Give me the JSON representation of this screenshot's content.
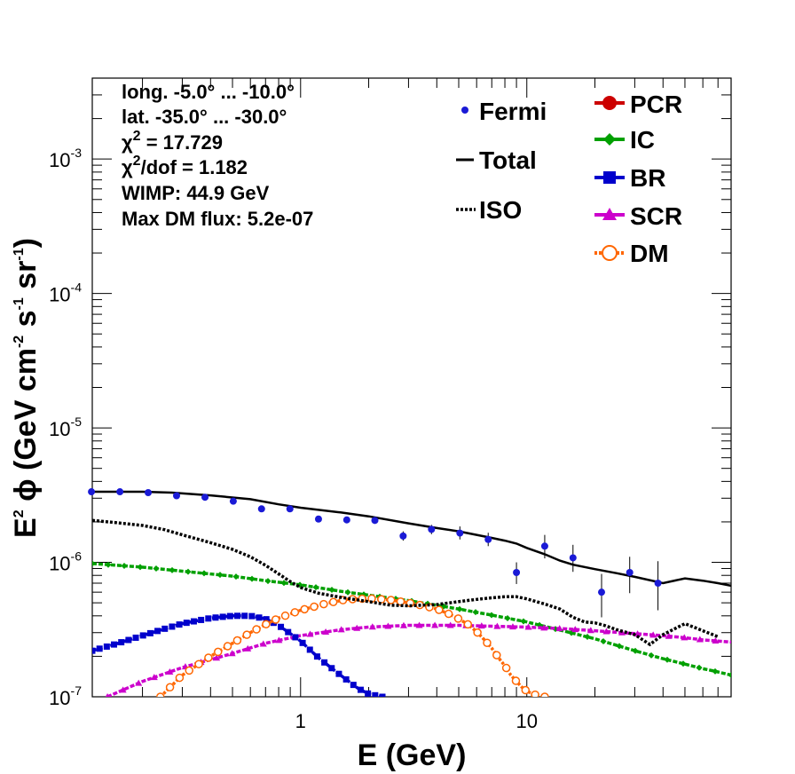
{
  "chart_data": {
    "type": "line",
    "x_scale": "log",
    "y_scale": "log",
    "xlim": [
      0.12,
      80
    ],
    "ylim": [
      1e-07,
      0.004
    ],
    "xlabel": "E (GeV)",
    "ylabel": "E² ϕ (GeV cm⁻² s⁻¹ sr⁻¹)",
    "ylabel_parts": {
      "pre": "E",
      "pre_sup": "2",
      "phi": " ϕ",
      "unit1": " (GeV cm",
      "sup1": "-2",
      "unit2": " s",
      "sup2": "-1",
      "unit3": " sr",
      "sup3": "-1",
      "unit4": ")"
    },
    "x_ticks": [
      {
        "value": 1,
        "label": "1"
      },
      {
        "value": 10,
        "label": "10"
      }
    ],
    "y_ticks": [
      {
        "value": 1e-07,
        "base": "10",
        "exp": "-7"
      },
      {
        "value": 1e-06,
        "base": "10",
        "exp": "-6"
      },
      {
        "value": 1e-05,
        "base": "10",
        "exp": "-5"
      },
      {
        "value": 0.0001,
        "base": "10",
        "exp": "-4"
      },
      {
        "value": 0.001,
        "base": "10",
        "exp": "-3"
      }
    ],
    "annotations": {
      "longitude": "long. -5.0° ... -10.0°",
      "latitude": "lat. -35.0° ... -30.0°",
      "chi2_symbol": "χ",
      "chi2_sup": "2",
      "chi2_value": " = 17.729",
      "chi2dof_value": "/dof = 1.182",
      "wimp": "WIMP: 44.9 GeV",
      "max_dm_flux": "Max DM flux: 5.2e-07"
    },
    "fermi": {
      "name": "Fermi",
      "color": "#1a1ad6",
      "points": [
        {
          "x": 0.119,
          "y": 3.35e-06
        },
        {
          "x": 0.159,
          "y": 3.35e-06
        },
        {
          "x": 0.212,
          "y": 3.3e-06
        },
        {
          "x": 0.283,
          "y": 3.13e-06
        },
        {
          "x": 0.378,
          "y": 3.05e-06
        },
        {
          "x": 0.504,
          "y": 2.85e-06
        },
        {
          "x": 0.672,
          "y": 2.5e-06
        },
        {
          "x": 0.897,
          "y": 2.5e-06
        },
        {
          "x": 1.2,
          "y": 2.1e-06
        },
        {
          "x": 1.6,
          "y": 2.07e-06
        },
        {
          "x": 2.13,
          "y": 2.05e-06
        },
        {
          "x": 2.84,
          "y": 1.57e-06,
          "err": [
            1.45e-06,
            1.7e-06
          ]
        },
        {
          "x": 3.79,
          "y": 1.76e-06,
          "err": [
            1.62e-06,
            1.9e-06
          ]
        },
        {
          "x": 5.06,
          "y": 1.65e-06,
          "err": [
            1.48e-06,
            1.85e-06
          ]
        },
        {
          "x": 6.75,
          "y": 1.48e-06,
          "err": [
            1.32e-06,
            1.66e-06
          ]
        },
        {
          "x": 9.0,
          "y": 8.4e-07,
          "err": [
            6.9e-07,
            1e-06
          ]
        },
        {
          "x": 12.0,
          "y": 1.32e-06,
          "err": [
            1.07e-06,
            1.6e-06
          ]
        },
        {
          "x": 16.0,
          "y": 1.08e-06,
          "err": [
            8.5e-07,
            1.35e-06
          ]
        },
        {
          "x": 21.4,
          "y": 6e-07,
          "err": [
            3.9e-07,
            8.2e-07
          ]
        },
        {
          "x": 28.5,
          "y": 8.4e-07,
          "err": [
            5.9e-07,
            1.1e-06
          ]
        },
        {
          "x": 38.0,
          "y": 7e-07,
          "err": [
            4.4e-07,
            1.02e-06
          ]
        }
      ]
    },
    "series": [
      {
        "name": "Total",
        "color": "#000000",
        "style": "solid",
        "marker": "none",
        "x": [
          0.12,
          0.2,
          0.27,
          0.4,
          0.6,
          0.8,
          1.0,
          1.5,
          2.0,
          3.0,
          4.0,
          5.0,
          6.0,
          7.0,
          8.0,
          9.0,
          10.0,
          12.0,
          14.0,
          16.0,
          20.0,
          25.0,
          30.0,
          40.0,
          50.0,
          60.0,
          70.0,
          80.0
        ],
        "y": [
          3.35e-06,
          3.35e-06,
          3.3e-06,
          3.15e-06,
          2.95e-06,
          2.7e-06,
          2.55e-06,
          2.35e-06,
          2.2e-06,
          1.95e-06,
          1.8e-06,
          1.7e-06,
          1.6e-06,
          1.52e-06,
          1.45e-06,
          1.38e-06,
          1.28e-06,
          1.15e-06,
          1.03e-06,
          9.6e-07,
          8.9e-07,
          8.3e-07,
          7.8e-07,
          7e-07,
          7.6e-07,
          7.3e-07,
          7e-07,
          6.7e-07
        ]
      },
      {
        "name": "ISO",
        "color": "#000000",
        "style": "dotted",
        "marker": "none",
        "x": [
          0.12,
          0.15,
          0.2,
          0.25,
          0.3,
          0.4,
          0.5,
          0.6,
          0.7,
          0.8,
          0.9,
          1.0,
          1.2,
          1.5,
          2.0,
          2.5,
          3.0,
          4.0,
          5.0,
          6.0,
          7.0,
          8.0,
          9.0,
          10.0,
          12.0,
          14.0,
          16.0,
          18.0,
          20.0,
          22.0,
          25.0,
          30.0,
          35.0,
          40.0,
          50.0,
          60.0,
          70.0
        ],
        "y": [
          2.05e-06,
          1.98e-06,
          1.88e-06,
          1.75e-06,
          1.6e-06,
          1.4e-06,
          1.25e-06,
          1.1e-06,
          9.5e-07,
          8.2e-07,
          7.2e-07,
          6.5e-07,
          5.9e-07,
          5.5e-07,
          5.1e-07,
          4.8e-07,
          4.75e-07,
          4.85e-07,
          5.1e-07,
          5.3e-07,
          5.45e-07,
          5.55e-07,
          5.55e-07,
          5.35e-07,
          4.9e-07,
          4.5e-07,
          3.9e-07,
          3.6e-07,
          3.55e-07,
          3.4e-07,
          3.15e-07,
          2.9e-07,
          2.45e-07,
          2.9e-07,
          3.5e-07,
          3.1e-07,
          2.8e-07
        ]
      },
      {
        "name": "PCR",
        "color": "#cc0000",
        "style": "solid",
        "marker": "circle",
        "x": [],
        "y": []
      },
      {
        "name": "IC",
        "color": "#00a000",
        "style": "dashed",
        "marker": "diamond",
        "x": [
          0.12,
          0.2,
          0.3,
          0.5,
          0.7,
          1.0,
          1.5,
          2.0,
          3.0,
          5.0,
          7.0,
          10.0,
          15.0,
          20.0,
          30.0,
          40.0,
          50.0,
          60.0,
          70.0,
          80.0
        ],
        "y": [
          9.8e-07,
          9.2e-07,
          8.6e-07,
          7.9e-07,
          7.3e-07,
          6.8e-07,
          6.1e-07,
          5.7e-07,
          5.2e-07,
          4.5e-07,
          4.05e-07,
          3.6e-07,
          3.05e-07,
          2.7e-07,
          2.2e-07,
          1.92e-07,
          1.75e-07,
          1.62e-07,
          1.53e-07,
          1.45e-07
        ]
      },
      {
        "name": "BR",
        "color": "#0000cc",
        "style": "dashed",
        "marker": "square",
        "x": [
          0.12,
          0.15,
          0.2,
          0.25,
          0.3,
          0.4,
          0.5,
          0.6,
          0.7,
          0.8,
          1.0,
          1.2,
          1.5,
          1.8,
          2.0,
          2.3
        ],
        "y": [
          2.2e-07,
          2.45e-07,
          2.85e-07,
          3.2e-07,
          3.5e-07,
          3.85e-07,
          4e-07,
          4e-07,
          3.8e-07,
          3.4e-07,
          2.6e-07,
          1.95e-07,
          1.45e-07,
          1.15e-07,
          1.05e-07,
          1e-07
        ]
      },
      {
        "name": "SCR",
        "color": "#cc00cc",
        "style": "dashed",
        "marker": "triangle",
        "x": [
          0.14,
          0.2,
          0.3,
          0.5,
          0.7,
          1.0,
          1.5,
          2.0,
          3.0,
          5.0,
          7.0,
          10.0,
          15.0,
          20.0,
          30.0,
          40.0,
          50.0,
          60.0,
          70.0,
          80.0
        ],
        "y": [
          1e-07,
          1.3e-07,
          1.65e-07,
          2.1e-07,
          2.5e-07,
          2.85e-07,
          3.15e-07,
          3.3e-07,
          3.4e-07,
          3.4e-07,
          3.35e-07,
          3.3e-07,
          3.2e-07,
          3.1e-07,
          2.95e-07,
          2.85e-07,
          2.75e-07,
          2.65e-07,
          2.6e-07,
          2.55e-07
        ]
      },
      {
        "name": "DM",
        "color": "#ff6600",
        "style": "dotted",
        "marker": "open-circle",
        "x": [
          0.24,
          0.3,
          0.4,
          0.5,
          0.6,
          0.7,
          0.8,
          1.0,
          1.3,
          1.6,
          2.0,
          2.5,
          3.0,
          3.5,
          4.0,
          4.5,
          5.0,
          5.5,
          6.0,
          6.5,
          7.0,
          7.5,
          8.0,
          8.5,
          9.0,
          9.5,
          10.0,
          11.0,
          12.0
        ],
        "y": [
          1e-07,
          1.45e-07,
          2e-07,
          2.5e-07,
          3e-07,
          3.45e-07,
          3.85e-07,
          4.4e-07,
          4.95e-07,
          5.3e-07,
          5.4e-07,
          5.25e-07,
          5e-07,
          4.75e-07,
          4.5e-07,
          4.15e-07,
          3.8e-07,
          3.45e-07,
          3.05e-07,
          2.65e-07,
          2.3e-07,
          1.95e-07,
          1.7e-07,
          1.45e-07,
          1.3e-07,
          1.18e-07,
          1.1e-07,
          1.03e-07,
          1e-07
        ]
      }
    ],
    "legend_left": [
      {
        "label": "Fermi",
        "key": "fermi"
      },
      {
        "label": "Total",
        "key": "total"
      },
      {
        "label": "ISO",
        "key": "iso"
      }
    ],
    "legend_right": [
      {
        "label": "PCR",
        "key": "pcr"
      },
      {
        "label": "IC",
        "key": "ic"
      },
      {
        "label": "BR",
        "key": "br"
      },
      {
        "label": "SCR",
        "key": "scr"
      },
      {
        "label": "DM",
        "key": "dm"
      }
    ]
  }
}
